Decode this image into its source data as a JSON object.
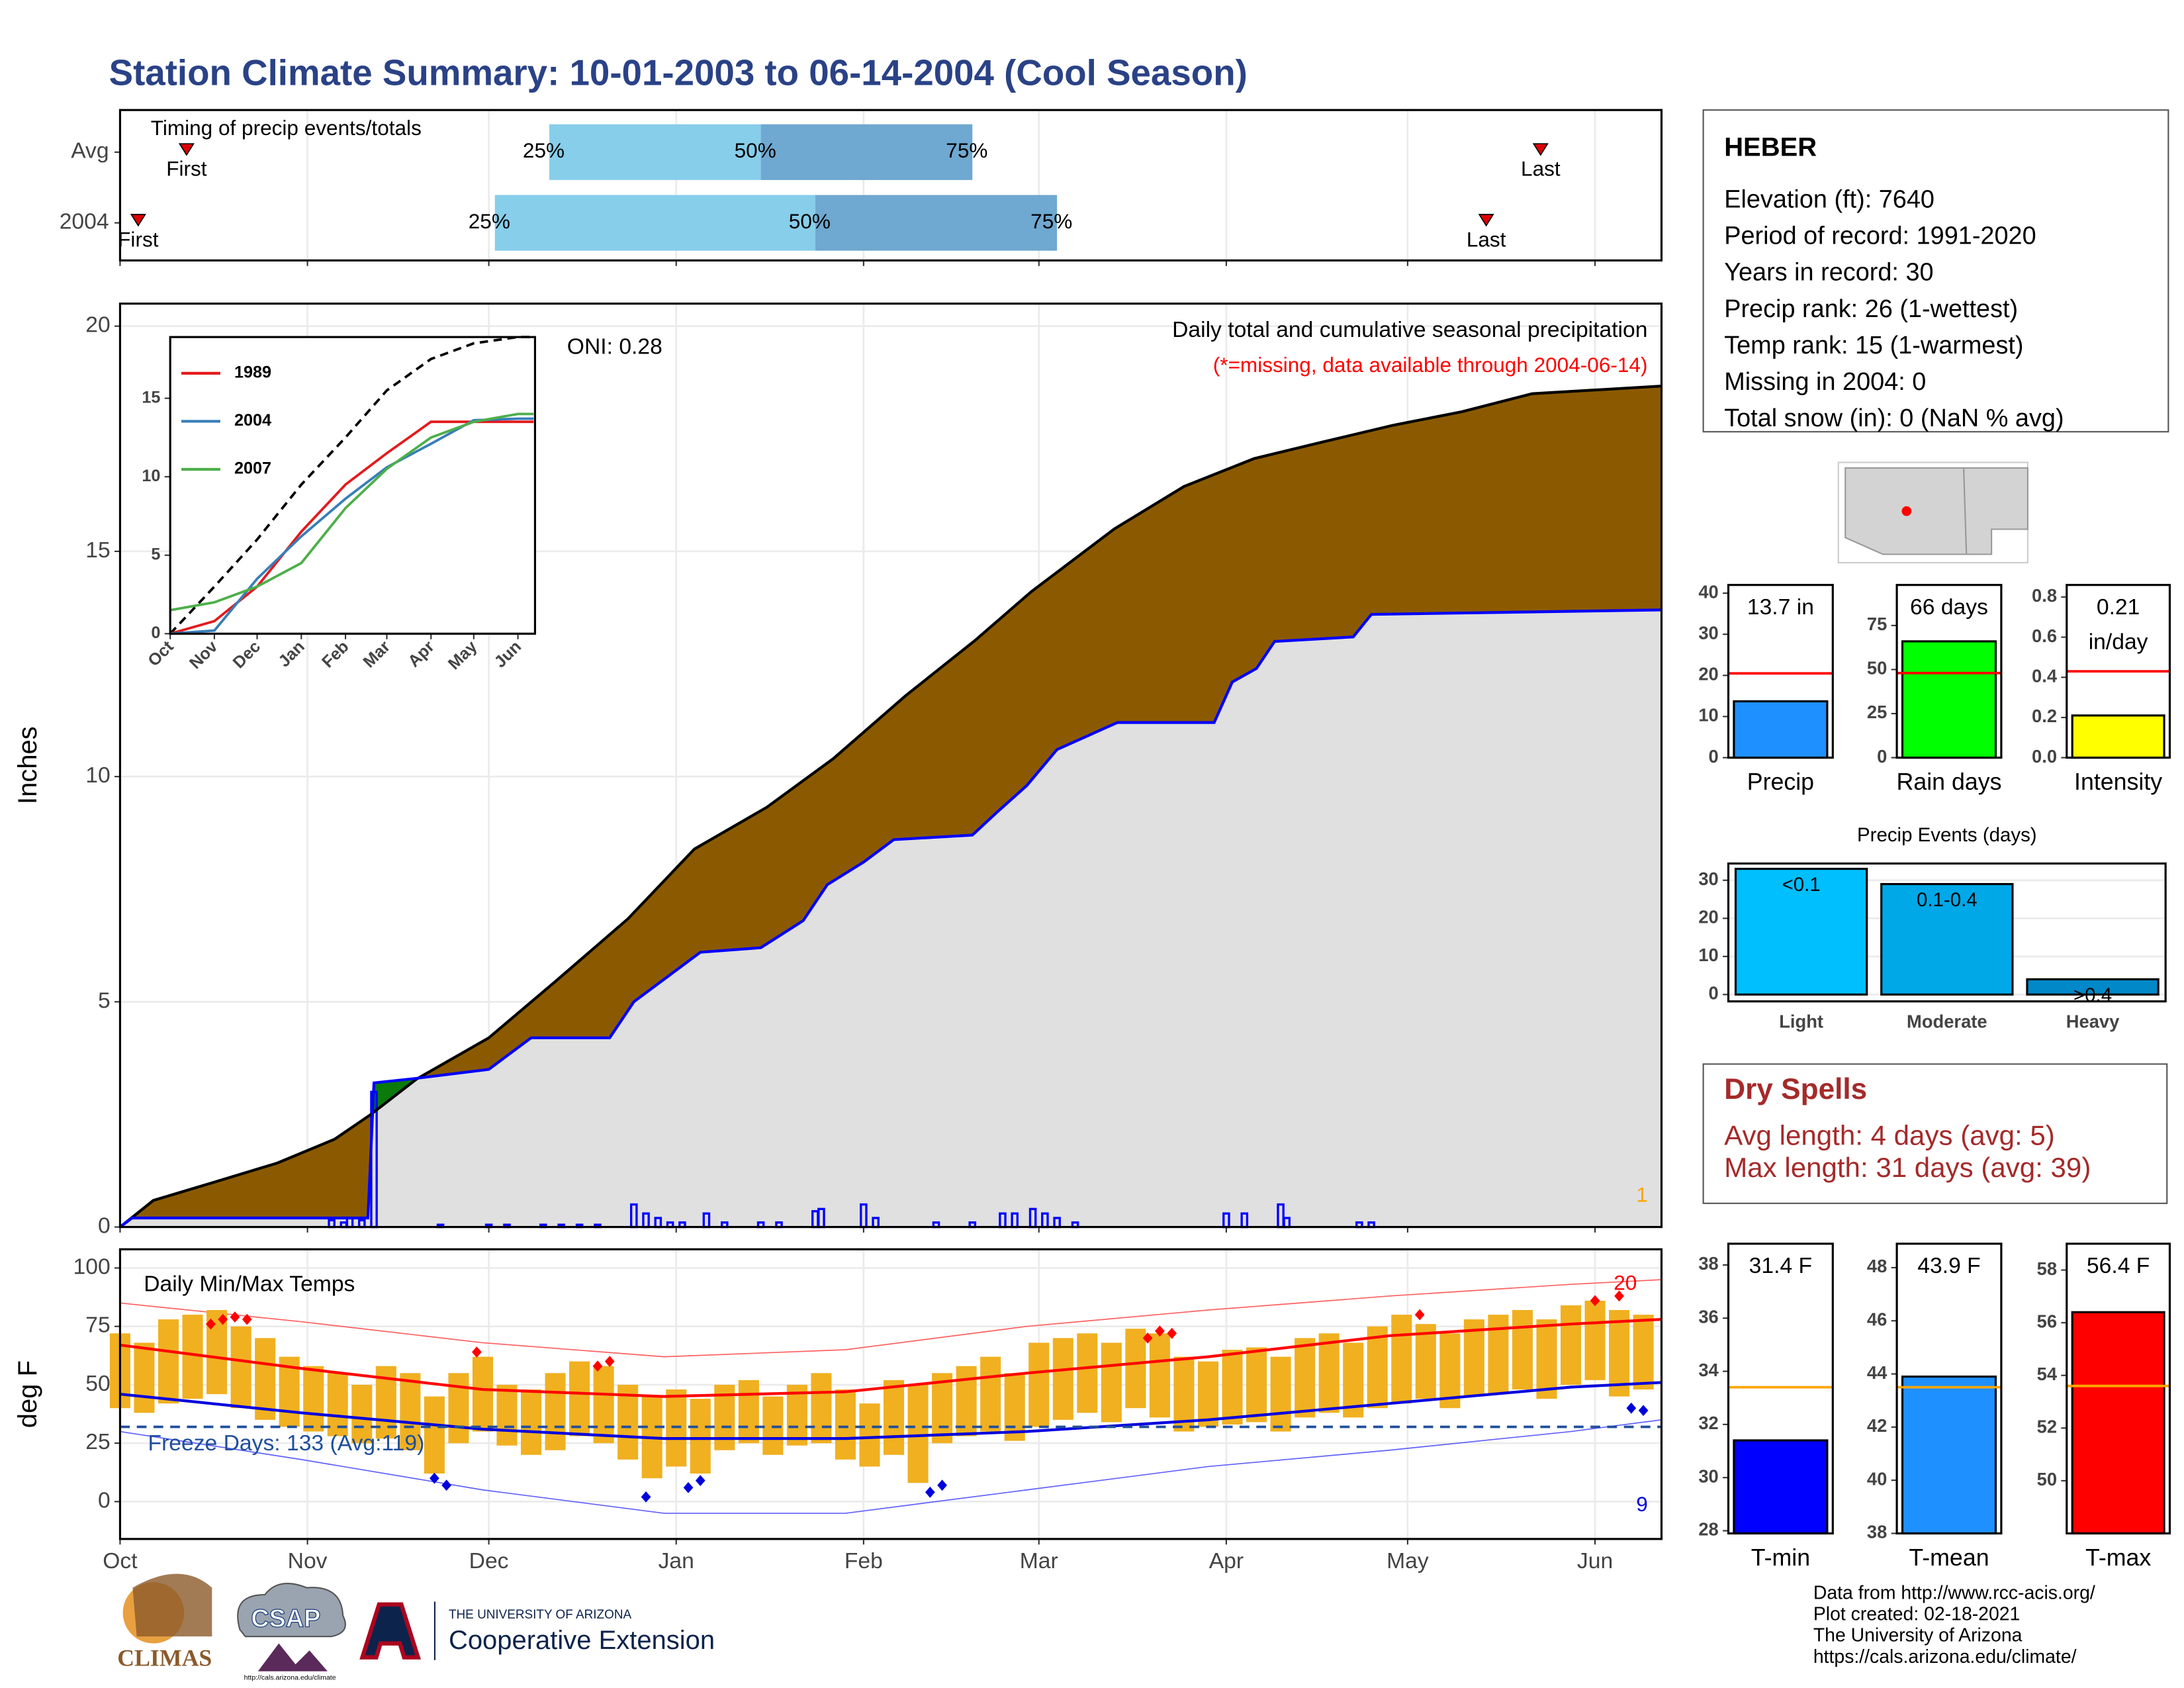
{
  "title": "Station Climate Summary: 10-01-2003 to 06-14-2004 (Cool Season)",
  "chart_data": [
    {
      "type": "timing",
      "title": "Timing of precip events/totals",
      "categories": [
        "Avg",
        "2004"
      ],
      "first": [
        11,
        3
      ],
      "q25": [
        71,
        62
      ],
      "q50": [
        106,
        115
      ],
      "q75": [
        141,
        155
      ],
      "last": [
        235,
        226
      ],
      "labels": {
        "first": "First",
        "q25": "25%",
        "q50": "50%",
        "q75": "75%",
        "last": "Last"
      },
      "colors": [
        "#87ceeb",
        "#6fa8d0"
      ],
      "marker_color": "#e00000",
      "xlim": [
        0,
        255
      ],
      "xticks": [
        0,
        31,
        61,
        92,
        123,
        152,
        183,
        213,
        244
      ],
      "grid": true
    },
    {
      "type": "cumulative",
      "subtitle": "Daily total and cumulative seasonal precipitation",
      "note": "(*=missing, data available through 2004-06-14)",
      "ylabel": "Inches",
      "annotation": 1,
      "xlim": [
        0,
        255
      ],
      "ylim": [
        0,
        20.5
      ],
      "yticks": [
        0,
        5,
        10,
        15,
        20
      ],
      "xticks": [
        0,
        31,
        61,
        92,
        123,
        152,
        183,
        213,
        244
      ],
      "grid": true,
      "average": {
        "color": "#8b5a00",
        "x": [
          0,
          5.5,
          14.7,
          26,
          35.5,
          41.5,
          49,
          61,
          72,
          84,
          95,
          107,
          118,
          130,
          141.5,
          150.7,
          164.5,
          176,
          187.6,
          199,
          210.6,
          222,
          233.6,
          255
        ],
        "values": [
          0,
          0.59,
          0.96,
          1.42,
          1.95,
          2.5,
          3.28,
          4.2,
          5.45,
          6.84,
          8.39,
          9.32,
          10.4,
          11.8,
          13.03,
          14.1,
          15.5,
          16.44,
          17.06,
          17.43,
          17.8,
          18.1,
          18.5,
          18.67
        ]
      },
      "current": {
        "color": "#0000ff",
        "fill": "#e0e0e0",
        "surplus_color": "#0a7a0a",
        "x": [
          0,
          2,
          41,
          42,
          49,
          61,
          68,
          81,
          85,
          91,
          96,
          106,
          113,
          117,
          123,
          128,
          141,
          145,
          150,
          155,
          165,
          181,
          184,
          188,
          191,
          204,
          207,
          255
        ],
        "values": [
          0,
          0.2,
          0.2,
          3.2,
          3.3,
          3.5,
          4.2,
          4.2,
          5.0,
          5.6,
          6.1,
          6.2,
          6.8,
          7.6,
          8.1,
          8.6,
          8.7,
          9.2,
          9.8,
          10.6,
          11.2,
          11.2,
          12.1,
          12.4,
          13.0,
          13.1,
          13.6,
          13.7
        ]
      },
      "daily": {
        "color": "#0000ff",
        "x": [
          35,
          37,
          38,
          40,
          42,
          53,
          61,
          64,
          70,
          73,
          76,
          79,
          85,
          87,
          89,
          91,
          93,
          97,
          100,
          106,
          109,
          115,
          116,
          123,
          125,
          135,
          141,
          146,
          148,
          151,
          153,
          155,
          158,
          183,
          186,
          192,
          193,
          205,
          207
        ],
        "values": [
          0.15,
          0.1,
          0.2,
          0.15,
          3.0,
          0.05,
          0.05,
          0.05,
          0.05,
          0.05,
          0.05,
          0.05,
          0.5,
          0.3,
          0.2,
          0.1,
          0.1,
          0.3,
          0.1,
          0.1,
          0.1,
          0.35,
          0.4,
          0.5,
          0.2,
          0.1,
          0.1,
          0.3,
          0.3,
          0.4,
          0.3,
          0.2,
          0.1,
          0.3,
          0.3,
          0.5,
          0.2,
          0.1,
          0.1
        ]
      }
    },
    {
      "type": "line",
      "annotation": "ONI: 0.28",
      "xlim": [
        0,
        256
      ],
      "ylim": [
        0,
        18.9
      ],
      "yticks": [
        0,
        5,
        10,
        15
      ],
      "xticks": [
        {
          "value": 0,
          "label": "Oct"
        },
        {
          "value": 31,
          "label": "Nov"
        },
        {
          "value": 61,
          "label": "Dec"
        },
        {
          "value": 92,
          "label": "Jan"
        },
        {
          "value": 123,
          "label": "Feb"
        },
        {
          "value": 152,
          "label": "Mar"
        },
        {
          "value": 183,
          "label": "Apr"
        },
        {
          "value": 213,
          "label": "May"
        },
        {
          "value": 244,
          "label": "Jun"
        }
      ],
      "x": [
        0,
        31,
        61,
        92,
        123,
        152,
        183,
        213,
        244,
        255
      ],
      "average": {
        "color": "#000000",
        "values": [
          0,
          3.0,
          6.0,
          9.5,
          12.5,
          15.5,
          17.5,
          18.5,
          18.9,
          18.9
        ]
      },
      "series": [
        {
          "name": "1989",
          "color": "#e41a1c",
          "values": [
            0,
            0.8,
            3.0,
            6.5,
            9.5,
            11.5,
            13.5,
            13.5,
            13.5,
            13.5
          ]
        },
        {
          "name": "2004",
          "color": "#377eb8",
          "values": [
            0,
            0.2,
            3.5,
            6.2,
            8.6,
            10.6,
            12.1,
            13.6,
            13.7,
            13.7
          ]
        },
        {
          "name": "2007",
          "color": "#4daf4a",
          "values": [
            1.5,
            2.0,
            3.0,
            4.5,
            8.0,
            10.5,
            12.5,
            13.5,
            14.0,
            14.0
          ]
        }
      ]
    },
    {
      "type": "temperature",
      "title": "Daily Min/Max Temps",
      "ylabel": "deg F",
      "freeze_label": "Freeze Days: 133 (Avg:119)",
      "freeze_line": 32,
      "record_high_count": 20,
      "record_low_count": 9,
      "xlim": [
        0,
        255
      ],
      "ylim": [
        -16,
        108
      ],
      "yticks": [
        0,
        25,
        50,
        75,
        100
      ],
      "grid": true,
      "xticks": [
        {
          "value": 0,
          "label": "Oct"
        },
        {
          "value": 31,
          "label": "Nov"
        },
        {
          "value": 61,
          "label": "Dec"
        },
        {
          "value": 92,
          "label": "Jan"
        },
        {
          "value": 123,
          "label": "Feb"
        },
        {
          "value": 152,
          "label": "Mar"
        },
        {
          "value": 183,
          "label": "Apr"
        },
        {
          "value": 213,
          "label": "May"
        },
        {
          "value": 244,
          "label": "Jun"
        }
      ],
      "x": [
        0,
        4,
        8,
        12,
        16,
        20,
        24,
        28,
        32,
        36,
        40,
        44,
        48,
        52,
        56,
        60,
        64,
        68,
        72,
        76,
        80,
        84,
        88,
        92,
        96,
        100,
        104,
        108,
        112,
        116,
        120,
        124,
        128,
        132,
        136,
        140,
        144,
        148,
        152,
        156,
        160,
        164,
        168,
        172,
        176,
        180,
        184,
        188,
        192,
        196,
        200,
        204,
        208,
        212,
        216,
        220,
        224,
        228,
        232,
        236,
        240,
        244,
        248,
        252
      ],
      "max": [
        72,
        68,
        78,
        80,
        82,
        75,
        70,
        62,
        58,
        55,
        50,
        58,
        55,
        45,
        55,
        62,
        50,
        48,
        55,
        60,
        58,
        50,
        45,
        48,
        44,
        50,
        52,
        45,
        50,
        55,
        48,
        42,
        52,
        50,
        55,
        58,
        62,
        55,
        68,
        70,
        72,
        68,
        74,
        72,
        62,
        60,
        65,
        66,
        62,
        70,
        72,
        68,
        75,
        80,
        76,
        72,
        78,
        80,
        82,
        78,
        84,
        86,
        82,
        80
      ],
      "min": [
        40,
        38,
        42,
        44,
        46,
        40,
        35,
        32,
        30,
        28,
        25,
        27,
        22,
        12,
        25,
        30,
        24,
        20,
        22,
        28,
        25,
        18,
        10,
        15,
        12,
        22,
        25,
        20,
        24,
        25,
        18,
        15,
        20,
        8,
        25,
        28,
        30,
        26,
        32,
        35,
        38,
        34,
        40,
        36,
        30,
        32,
        33,
        34,
        30,
        36,
        38,
        36,
        40,
        42,
        44,
        40,
        45,
        46,
        48,
        44,
        50,
        52,
        45,
        48
      ],
      "range_color": "#f0b020",
      "normals": {
        "x": [
          0,
          30,
          60,
          90,
          120,
          150,
          180,
          210,
          240,
          255
        ],
        "max": [
          67,
          57,
          48,
          45,
          47,
          55,
          62,
          71,
          76,
          78
        ],
        "min": [
          46,
          38,
          31,
          27,
          27,
          30,
          35,
          42,
          49,
          51
        ]
      },
      "records": {
        "x": [
          0,
          30,
          60,
          90,
          120,
          150,
          180,
          210,
          240,
          255
        ],
        "max": [
          85,
          77,
          68,
          62,
          65,
          75,
          82,
          88,
          93,
          95
        ],
        "min": [
          30,
          18,
          5,
          -5,
          -5,
          5,
          15,
          22,
          30,
          35
        ]
      },
      "record_highs": {
        "color": "#ff0000",
        "x": [
          15,
          17,
          19,
          21,
          59,
          79,
          81,
          170,
          172,
          174,
          215,
          244,
          248
        ],
        "values": [
          76,
          78,
          79,
          78,
          64,
          58,
          60,
          70,
          73,
          72,
          80,
          86,
          88
        ]
      },
      "record_lows": {
        "color": "#0000dd",
        "x": [
          52,
          54,
          87,
          94,
          96,
          134,
          136,
          250,
          252
        ],
        "values": [
          10,
          7,
          2,
          6,
          9,
          4,
          7,
          40,
          39
        ]
      }
    },
    {
      "type": "bar",
      "categories": [
        "Precip"
      ],
      "values": [
        13.7
      ],
      "value_labels": [
        "13.7 in"
      ],
      "average": 20.5,
      "average_color": "#ff0000",
      "color": "#1e90ff",
      "ylim": [
        0,
        42
      ],
      "yticks": [
        0,
        10,
        20,
        30,
        40
      ]
    },
    {
      "type": "bar",
      "categories": [
        "Rain days"
      ],
      "values": [
        66
      ],
      "value_labels": [
        "66 days"
      ],
      "average": 48,
      "average_color": "#ff0000",
      "color": "#00ff00",
      "ylim": [
        0,
        98
      ],
      "yticks": [
        0,
        25,
        50,
        75
      ]
    },
    {
      "type": "bar",
      "categories": [
        "Intensity"
      ],
      "values": [
        0.21
      ],
      "value_labels": [
        "0.21"
      ],
      "unit": "in/day",
      "average": 0.43,
      "average_color": "#ff0000",
      "color": "#ffff00",
      "ylim": [
        0,
        0.86
      ],
      "yticks": [
        {
          "value": 0,
          "label": "0.0"
        },
        {
          "value": 0.2,
          "label": "0.2"
        },
        {
          "value": 0.4,
          "label": "0.4"
        },
        {
          "value": 0.6,
          "label": "0.6"
        },
        {
          "value": 0.8,
          "label": "0.8"
        }
      ]
    },
    {
      "type": "events",
      "title": "Precip Events (days)",
      "categories": [
        "Light",
        "Moderate",
        "Heavy"
      ],
      "values": [
        33,
        29,
        4
      ],
      "bin_labels": [
        "<0.1",
        "0.1-0.4",
        ">0.4"
      ],
      "colors": [
        "#00bfff",
        "#00a8e8",
        "#0088c8"
      ],
      "ylim": [
        -1.8,
        34.4
      ],
      "yticks": [
        0,
        10,
        20,
        30
      ],
      "grid": true
    },
    {
      "type": "bar",
      "categories": [
        "T-min"
      ],
      "values": [
        31.4
      ],
      "value_labels": [
        "31.4 F"
      ],
      "average": 33.4,
      "average_color": "#ffa500",
      "color": "#0000ff",
      "ylim": [
        27.9,
        38.8
      ],
      "yticks": [
        28,
        30,
        32,
        34,
        36,
        38
      ]
    },
    {
      "type": "bar",
      "categories": [
        "T-mean"
      ],
      "values": [
        43.9
      ],
      "value_labels": [
        "43.9 F"
      ],
      "average": 43.5,
      "average_color": "#ffa500",
      "color": "#1e90ff",
      "ylim": [
        38,
        48.9
      ],
      "yticks": [
        38,
        40,
        42,
        44,
        46,
        48
      ]
    },
    {
      "type": "bar",
      "categories": [
        "T-max"
      ],
      "values": [
        56.4
      ],
      "value_labels": [
        "56.4 F"
      ],
      "average": 53.6,
      "average_color": "#ffa500",
      "color": "#ff0000",
      "ylim": [
        48,
        59
      ],
      "yticks": [
        50,
        52,
        54,
        56,
        58
      ]
    }
  ],
  "station": {
    "name": "HEBER",
    "lines": [
      "Elevation (ft): 7640",
      "Period of record: 1991-2020",
      "Years in record: 30",
      "Precip rank: 26 (1-wettest)",
      "Temp rank: 15 (1-warmest)",
      "Missing in 2004: 0",
      "Total snow (in): 0 (NaN % avg)"
    ]
  },
  "dry_spells": {
    "title": "Dry Spells",
    "lines": [
      "Avg length: 4 days (avg: 5)",
      "Max length: 31 days (avg: 39)"
    ]
  },
  "credits": [
    "Data from http://www.rcc-acis.org/",
    "Plot created: 02-18-2021",
    "The University of Arizona",
    "https://cals.arizona.edu/climate/"
  ],
  "logos": {
    "climas": "CLIMAS",
    "csap": "CSAP",
    "csap_url": "http://cals.arizona.edu/climate",
    "university": "THE UNIVERSITY OF ARIZONA",
    "extension": "Cooperative Extension"
  }
}
